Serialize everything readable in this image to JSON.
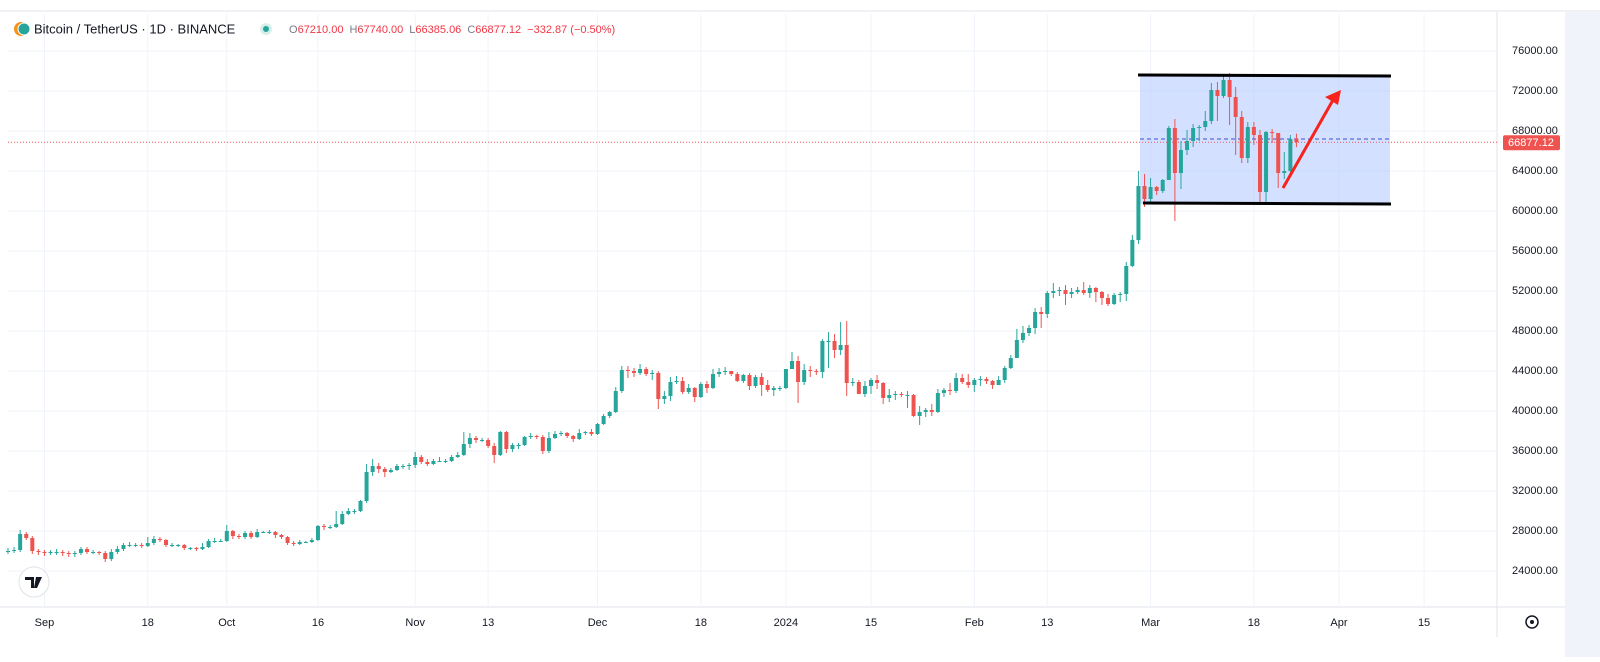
{
  "chart_data": {
    "type": "candlestick",
    "title": "Bitcoin / TetherUS · 1D · BINANCE",
    "ohlc": [
      {
        "key": "O",
        "text": "67210.00"
      },
      {
        "key": "H",
        "text": "67740.00"
      },
      {
        "key": "L",
        "text": "66385.06"
      },
      {
        "key": "C",
        "text": "66877.12"
      }
    ],
    "change": "−332.87 (−0.50%)",
    "up_color": "#26a69a",
    "down_color": "#ef5350",
    "grid": true,
    "xlim": [
      -6,
      239
    ],
    "ylim": [
      20400,
      79700
    ],
    "xticks": [
      {
        "value": 0,
        "label": "Sep"
      },
      {
        "value": 17,
        "label": "18"
      },
      {
        "value": 30,
        "label": "Oct"
      },
      {
        "value": 45,
        "label": "16"
      },
      {
        "value": 61,
        "label": "Nov"
      },
      {
        "value": 73,
        "label": "13"
      },
      {
        "value": 91,
        "label": "Dec"
      },
      {
        "value": 108,
        "label": "18"
      },
      {
        "value": 122,
        "label": "2024"
      },
      {
        "value": 136,
        "label": "15"
      },
      {
        "value": 153,
        "label": "Feb"
      },
      {
        "value": 165,
        "label": "13"
      },
      {
        "value": 182,
        "label": "Mar"
      },
      {
        "value": 199,
        "label": "18"
      },
      {
        "value": 213,
        "label": "Apr"
      },
      {
        "value": 227,
        "label": "15"
      }
    ],
    "yticks": [
      {
        "value": 24000,
        "label": "24000.00"
      },
      {
        "value": 28000,
        "label": "28000.00"
      },
      {
        "value": 32000,
        "label": "32000.00"
      },
      {
        "value": 36000,
        "label": "36000.00"
      },
      {
        "value": 40000,
        "label": "40000.00"
      },
      {
        "value": 44000,
        "label": "44000.00"
      },
      {
        "value": 48000,
        "label": "48000.00"
      },
      {
        "value": 52000,
        "label": "52000.00"
      },
      {
        "value": 56000,
        "label": "56000.00"
      },
      {
        "value": 60000,
        "label": "60000.00"
      },
      {
        "value": 64000,
        "label": "64000.00"
      },
      {
        "value": 68000,
        "label": "68000.00"
      },
      {
        "value": 72000,
        "label": "72000.00"
      },
      {
        "value": 76000,
        "label": "76000.00"
      }
    ],
    "x": [
      -6,
      -5,
      -4,
      -3,
      -2,
      -1,
      0,
      1,
      2,
      3,
      4,
      5,
      6,
      7,
      8,
      9,
      10,
      11,
      12,
      13,
      14,
      15,
      16,
      17,
      18,
      19,
      20,
      21,
      22,
      23,
      24,
      25,
      26,
      27,
      28,
      29,
      30,
      31,
      32,
      33,
      34,
      35,
      36,
      37,
      38,
      39,
      40,
      41,
      42,
      43,
      44,
      45,
      46,
      47,
      48,
      49,
      50,
      51,
      52,
      53,
      54,
      55,
      56,
      57,
      58,
      59,
      60,
      61,
      62,
      63,
      64,
      65,
      66,
      67,
      68,
      69,
      70,
      71,
      72,
      73,
      74,
      75,
      76,
      77,
      78,
      79,
      80,
      81,
      82,
      83,
      84,
      85,
      86,
      87,
      88,
      89,
      90,
      91,
      92,
      93,
      94,
      95,
      96,
      97,
      98,
      99,
      100,
      101,
      102,
      103,
      104,
      105,
      106,
      107,
      108,
      109,
      110,
      111,
      112,
      113,
      114,
      115,
      116,
      117,
      118,
      119,
      120,
      121,
      122,
      123,
      124,
      125,
      126,
      127,
      128,
      129,
      130,
      131,
      132,
      133,
      134,
      135,
      136,
      137,
      138,
      139,
      140,
      141,
      142,
      143,
      144,
      145,
      146,
      147,
      148,
      149,
      150,
      151,
      152,
      153,
      154,
      155,
      156,
      157,
      158,
      159,
      160,
      161,
      162,
      163,
      164,
      165,
      166,
      167,
      168,
      169,
      170,
      171,
      172,
      173,
      174,
      175,
      176,
      177,
      178,
      179,
      180,
      181,
      182,
      183,
      184,
      185,
      186,
      187,
      188,
      189,
      190,
      191,
      192,
      193,
      194,
      195,
      196,
      197,
      198,
      199,
      200,
      201,
      202,
      203,
      204,
      205,
      206
    ],
    "open": [
      25900,
      26000,
      26100,
      27700,
      27300,
      26000,
      25900,
      25800,
      25900,
      25900,
      25800,
      25700,
      25800,
      26200,
      25900,
      25900,
      25800,
      25200,
      25900,
      26200,
      26600,
      26600,
      26600,
      26500,
      26800,
      27200,
      27100,
      26600,
      26600,
      26600,
      26300,
      26300,
      26200,
      26400,
      27000,
      27000,
      27000,
      28000,
      27500,
      27400,
      27800,
      27400,
      27900,
      27900,
      27900,
      27600,
      27400,
      26800,
      26700,
      26900,
      26900,
      27100,
      28500,
      28400,
      28400,
      28700,
      29700,
      30000,
      30000,
      31000,
      33900,
      34500,
      34200,
      33900,
      34100,
      34500,
      34500,
      34600,
      35400,
      34900,
      34700,
      35000,
      35000,
      35000,
      35400,
      35600,
      36700,
      37300,
      37100,
      37100,
      36500,
      35600,
      37900,
      36200,
      36600,
      36600,
      37400,
      37500,
      37400,
      36000,
      37300,
      37700,
      37800,
      37500,
      37200,
      37800,
      37900,
      37700,
      38700,
      39500,
      39900,
      42000,
      44100,
      44000,
      43800,
      44200,
      43700,
      43800,
      41200,
      41500,
      42900,
      43000,
      41900,
      42300,
      41400,
      42700,
      42300,
      43700,
      43900,
      44000,
      43700,
      43000,
      43600,
      42500,
      43400,
      42600,
      42100,
      42300,
      42300,
      44200,
      45000,
      42900,
      44100,
      44000,
      43900,
      47000,
      47000,
      46100,
      46600,
      42800,
      42900,
      41700,
      42500,
      43100,
      42800,
      41300,
      41600,
      41700,
      41600,
      41600,
      39500,
      39900,
      40100,
      39900,
      41800,
      42100,
      42000,
      43300,
      42900,
      42600,
      43100,
      43200,
      43000,
      42600,
      43100,
      44300,
      45300,
      47100,
      47800,
      48300,
      49900,
      49700,
      51800,
      52000,
      52100,
      51700,
      51900,
      52100,
      51800,
      52300,
      51900,
      51300,
      50700,
      51600,
      51700,
      54500,
      57100,
      62500,
      61200,
      62400,
      62000,
      63100,
      68300,
      63800,
      66100,
      67000,
      68300,
      68400,
      69000,
      72100,
      71500,
      73100,
      71400,
      69400,
      65300,
      68400,
      67600,
      61900,
      67900,
      67800,
      63800,
      64000,
      67210
    ],
    "high": [
      26300,
      26400,
      28100,
      27900,
      27500,
      26200,
      26100,
      26100,
      26200,
      26100,
      26000,
      26000,
      26400,
      26400,
      26100,
      26000,
      26000,
      26200,
      26500,
      26800,
      26900,
      26800,
      26800,
      27400,
      27500,
      27400,
      27200,
      26800,
      26700,
      26700,
      26400,
      26400,
      26800,
      27200,
      27300,
      27200,
      28600,
      28100,
      27700,
      28000,
      28000,
      28200,
      28000,
      28100,
      28000,
      27700,
      27500,
      27000,
      27100,
      27000,
      27300,
      28600,
      28700,
      28600,
      30000,
      30000,
      30300,
      30200,
      31100,
      34700,
      35200,
      34800,
      34400,
      34300,
      34700,
      34700,
      34800,
      35900,
      35600,
      35200,
      35200,
      35400,
      35200,
      35600,
      35900,
      37900,
      37800,
      37500,
      37300,
      37300,
      36800,
      38000,
      38000,
      36800,
      36800,
      37500,
      37800,
      37600,
      37600,
      37900,
      38000,
      38000,
      37900,
      37600,
      38200,
      38000,
      38200,
      38800,
      39700,
      40000,
      42400,
      44500,
      44500,
      44300,
      44700,
      44400,
      44100,
      44000,
      42000,
      43400,
      43500,
      43400,
      42700,
      42400,
      42900,
      43000,
      44200,
      44300,
      44400,
      44000,
      43900,
      43700,
      43800,
      43600,
      43800,
      43100,
      42500,
      42500,
      44200,
      45900,
      45500,
      44700,
      44500,
      44200,
      47200,
      47900,
      47700,
      48900,
      49000,
      43300,
      43100,
      43000,
      43300,
      43600,
      42900,
      42200,
      42000,
      41900,
      42000,
      41700,
      40500,
      40300,
      40700,
      42200,
      42300,
      42800,
      43800,
      43700,
      43700,
      43300,
      43500,
      43400,
      43100,
      43500,
      44500,
      45600,
      48200,
      48500,
      48600,
      50300,
      50400,
      52000,
      52800,
      52400,
      52600,
      52300,
      52400,
      52900,
      52600,
      52400,
      52000,
      51700,
      51800,
      51900,
      54900,
      57600,
      64000,
      63700,
      63300,
      62500,
      63200,
      68500,
      69200,
      67000,
      68100,
      68700,
      68600,
      70000,
      72800,
      72900,
      73600,
      73800,
      72400,
      70000,
      68900,
      68900,
      68100,
      68000,
      68200,
      67800,
      65900,
      67600,
      67740
    ],
    "low": [
      25700,
      25800,
      25900,
      27100,
      25700,
      25600,
      25500,
      25600,
      25600,
      25500,
      25400,
      25400,
      25600,
      25700,
      25700,
      25600,
      24900,
      25000,
      25700,
      26000,
      26400,
      26400,
      26300,
      26400,
      26600,
      26900,
      26400,
      26400,
      26400,
      26100,
      26100,
      26000,
      26100,
      26300,
      26800,
      26900,
      26900,
      27200,
      27200,
      27200,
      27200,
      27300,
      27800,
      27700,
      27300,
      27200,
      26600,
      26500,
      26600,
      26800,
      26800,
      27000,
      28100,
      28200,
      28300,
      28600,
      29600,
      29700,
      29900,
      30800,
      33500,
      33800,
      33400,
      33800,
      34000,
      34200,
      34100,
      34300,
      34700,
      34500,
      34600,
      34900,
      34800,
      34900,
      35300,
      35500,
      36300,
      36800,
      36900,
      36300,
      34800,
      35500,
      35800,
      35900,
      36200,
      36500,
      37200,
      37200,
      35700,
      35800,
      37200,
      37500,
      37300,
      36900,
      37100,
      37600,
      37500,
      37600,
      38600,
      39300,
      39800,
      41800,
      43300,
      43400,
      43600,
      43500,
      43100,
      40200,
      40700,
      41000,
      42700,
      41700,
      41700,
      40900,
      41300,
      41800,
      42200,
      43400,
      43600,
      43500,
      42900,
      42800,
      42100,
      42300,
      41500,
      41900,
      41500,
      42000,
      42200,
      44200,
      40800,
      42600,
      43400,
      43600,
      43300,
      44300,
      45300,
      45600,
      41500,
      42500,
      41700,
      41400,
      41700,
      42200,
      40700,
      40900,
      41100,
      41400,
      40300,
      39400,
      38600,
      39400,
      39500,
      39800,
      41400,
      41600,
      41800,
      42700,
      42300,
      41900,
      42500,
      42700,
      42200,
      42600,
      42800,
      44200,
      45300,
      46800,
      47500,
      47700,
      48300,
      49300,
      51300,
      51500,
      50600,
      51300,
      51700,
      51600,
      51300,
      50900,
      50600,
      50500,
      50600,
      50900,
      51000,
      54400,
      56700,
      60400,
      60800,
      61600,
      61800,
      63100,
      59000,
      62200,
      65600,
      66400,
      67000,
      68000,
      68700,
      69000,
      71300,
      68600,
      65600,
      64800,
      64800,
      66600,
      60800,
      60800,
      66800,
      62300,
      63200,
      63800,
      66385.06
    ],
    "close": [
      26000,
      26100,
      27700,
      27300,
      26000,
      25900,
      25800,
      25900,
      25900,
      25800,
      25700,
      25800,
      26200,
      25900,
      25900,
      25800,
      25200,
      25900,
      26200,
      26600,
      26600,
      26600,
      26500,
      26800,
      27200,
      27100,
      26600,
      26600,
      26600,
      26300,
      26300,
      26200,
      26400,
      27000,
      27000,
      27000,
      28000,
      27500,
      27400,
      27800,
      27400,
      27900,
      27900,
      27900,
      27600,
      27400,
      26800,
      26700,
      26900,
      26900,
      27100,
      28500,
      28400,
      28400,
      28700,
      29700,
      30000,
      30000,
      31000,
      33900,
      34500,
      34200,
      33900,
      34100,
      34500,
      34500,
      34600,
      35400,
      34900,
      34700,
      35000,
      35000,
      35000,
      35400,
      35600,
      36700,
      37300,
      37100,
      37100,
      36500,
      35600,
      37900,
      36200,
      36600,
      36600,
      37400,
      37500,
      37400,
      36000,
      37300,
      37700,
      37800,
      37500,
      37200,
      37800,
      37900,
      37700,
      38700,
      39500,
      39900,
      42000,
      44100,
      44000,
      43800,
      44200,
      43700,
      43800,
      41200,
      41500,
      42900,
      43000,
      41900,
      42300,
      41400,
      42700,
      42300,
      43700,
      43900,
      44000,
      43700,
      43000,
      43600,
      42500,
      43400,
      42600,
      42100,
      42300,
      42300,
      44200,
      45000,
      42900,
      44100,
      44000,
      43900,
      47000,
      47000,
      46100,
      46600,
      42800,
      42900,
      41700,
      42500,
      43100,
      42800,
      41300,
      41600,
      41700,
      41600,
      41600,
      39500,
      39900,
      40100,
      39900,
      41800,
      42100,
      42000,
      43300,
      42900,
      42600,
      43100,
      43200,
      43000,
      42600,
      43100,
      44300,
      45300,
      47100,
      47800,
      48300,
      49900,
      49700,
      51800,
      52000,
      52100,
      51700,
      51900,
      52100,
      51800,
      52300,
      51900,
      51300,
      50700,
      51600,
      51700,
      54500,
      57100,
      62500,
      61200,
      62400,
      62000,
      63100,
      68300,
      63800,
      66100,
      67000,
      68300,
      68400,
      69000,
      72100,
      71500,
      73100,
      71400,
      69400,
      65300,
      68400,
      67600,
      61900,
      67900,
      67800,
      63800,
      64000,
      67210,
      66877.12
    ]
  }
}
